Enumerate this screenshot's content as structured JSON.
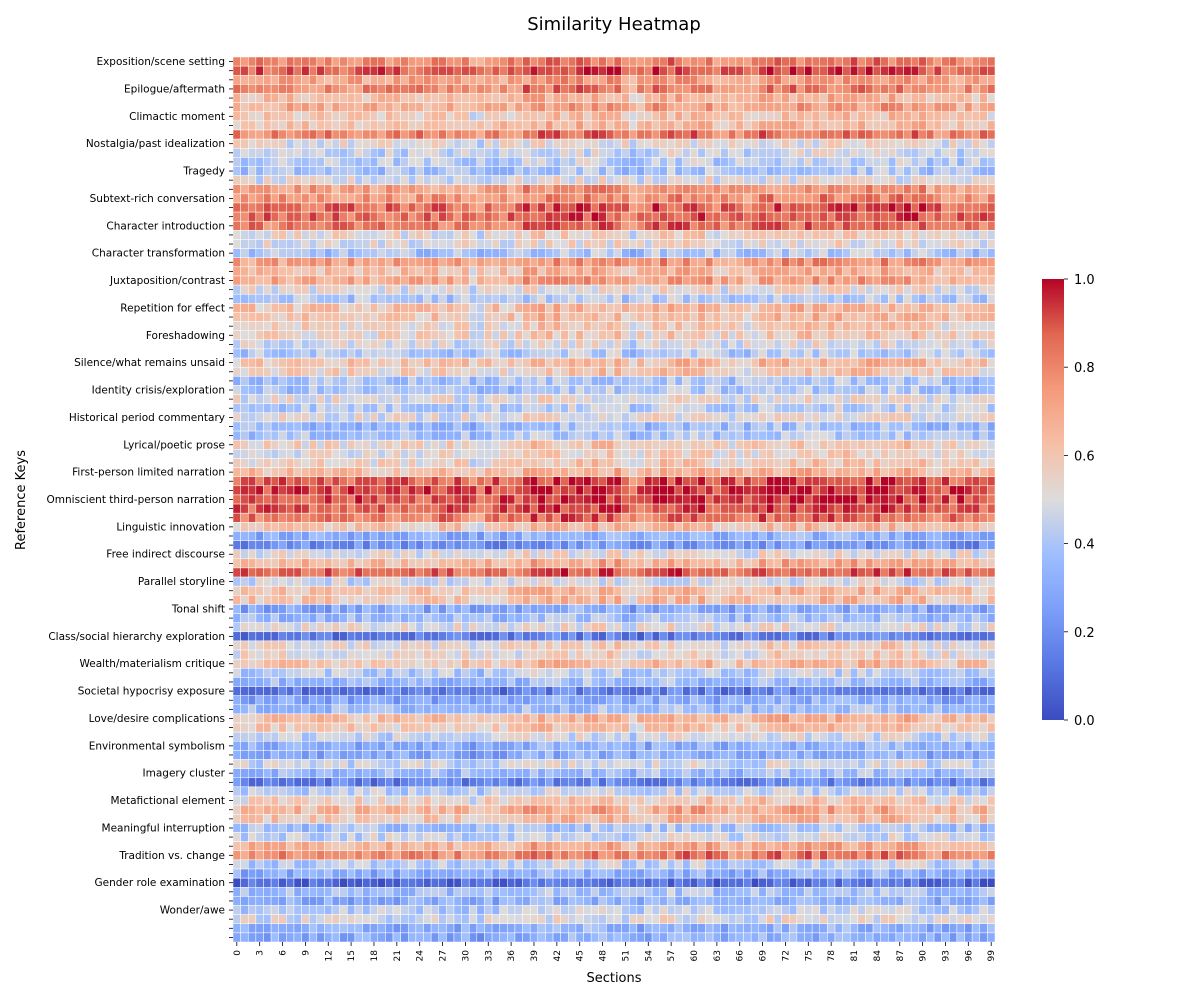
{
  "chart_data": {
    "type": "heatmap",
    "title": "Similarity Heatmap",
    "xlabel": "Sections",
    "ylabel": "Reference Keys",
    "n_columns": 100,
    "n_rows": 97,
    "colormap": "coolwarm",
    "value_range": [
      0.0,
      1.0
    ],
    "colorbar_ticks": [
      "0.0",
      "0.2",
      "0.4",
      "0.6",
      "0.8",
      "1.0"
    ],
    "x_tick_labels": [
      "0",
      "3",
      "6",
      "9",
      "12",
      "15",
      "18",
      "21",
      "24",
      "27",
      "30",
      "33",
      "36",
      "39",
      "42",
      "45",
      "48",
      "51",
      "54",
      "57",
      "60",
      "63",
      "66",
      "69",
      "72",
      "75",
      "78",
      "81",
      "84",
      "87",
      "90",
      "93",
      "96",
      "99"
    ],
    "labeled_rows": [
      {
        "label": "Exposition/scene setting",
        "row": 0
      },
      {
        "label": "Epilogue/aftermath",
        "row": 3
      },
      {
        "label": "Climactic moment",
        "row": 6
      },
      {
        "label": "Nostalgia/past idealization",
        "row": 9
      },
      {
        "label": "Tragedy",
        "row": 12
      },
      {
        "label": "Subtext-rich conversation",
        "row": 15
      },
      {
        "label": "Character introduction",
        "row": 18
      },
      {
        "label": "Character transformation",
        "row": 21
      },
      {
        "label": "Juxtaposition/contrast",
        "row": 24
      },
      {
        "label": "Repetition for effect",
        "row": 27
      },
      {
        "label": "Foreshadowing",
        "row": 30
      },
      {
        "label": "Silence/what remains unsaid",
        "row": 33
      },
      {
        "label": "Identity crisis/exploration",
        "row": 36
      },
      {
        "label": "Historical period commentary",
        "row": 39
      },
      {
        "label": "Lyrical/poetic prose",
        "row": 42
      },
      {
        "label": "First-person limited narration",
        "row": 45
      },
      {
        "label": "Omniscient third-person narration",
        "row": 48
      },
      {
        "label": "Linguistic innovation",
        "row": 51
      },
      {
        "label": "Free indirect discourse",
        "row": 54
      },
      {
        "label": "Parallel storyline",
        "row": 57
      },
      {
        "label": "Tonal shift",
        "row": 60
      },
      {
        "label": "Class/social hierarchy exploration",
        "row": 63
      },
      {
        "label": "Wealth/materialism critique",
        "row": 66
      },
      {
        "label": "Societal hypocrisy exposure",
        "row": 69
      },
      {
        "label": "Love/desire complications",
        "row": 72
      },
      {
        "label": "Environmental symbolism",
        "row": 75
      },
      {
        "label": "Imagery cluster",
        "row": 78
      },
      {
        "label": "Metafictional element",
        "row": 81
      },
      {
        "label": "Meaningful interruption",
        "row": 84
      },
      {
        "label": "Tradition vs. change",
        "row": 87
      },
      {
        "label": "Gender role examination",
        "row": 90
      },
      {
        "label": "Wonder/awe",
        "row": 93
      }
    ],
    "row_base_values": [
      0.78,
      0.88,
      0.7,
      0.78,
      0.62,
      0.68,
      0.57,
      0.62,
      0.8,
      0.5,
      0.45,
      0.42,
      0.38,
      0.48,
      0.72,
      0.75,
      0.85,
      0.85,
      0.82,
      0.52,
      0.5,
      0.38,
      0.72,
      0.62,
      0.68,
      0.5,
      0.4,
      0.6,
      0.6,
      0.55,
      0.55,
      0.48,
      0.4,
      0.6,
      0.55,
      0.38,
      0.38,
      0.5,
      0.42,
      0.5,
      0.35,
      0.38,
      0.55,
      0.52,
      0.55,
      0.62,
      0.88,
      0.92,
      0.9,
      0.88,
      0.82,
      0.6,
      0.3,
      0.2,
      0.5,
      0.65,
      0.85,
      0.45,
      0.6,
      0.6,
      0.28,
      0.35,
      0.5,
      0.12,
      0.52,
      0.52,
      0.6,
      0.42,
      0.35,
      0.12,
      0.28,
      0.35,
      0.62,
      0.58,
      0.45,
      0.3,
      0.28,
      0.45,
      0.35,
      0.15,
      0.42,
      0.55,
      0.65,
      0.6,
      0.38,
      0.45,
      0.65,
      0.78,
      0.42,
      0.3,
      0.08,
      0.38,
      0.3,
      0.42,
      0.48,
      0.3,
      0.3
    ],
    "note": "Cell values vary around each row's base level (range 0-1); hot columns near sections 38-50, 55-62, 69-90 in upper rows."
  }
}
